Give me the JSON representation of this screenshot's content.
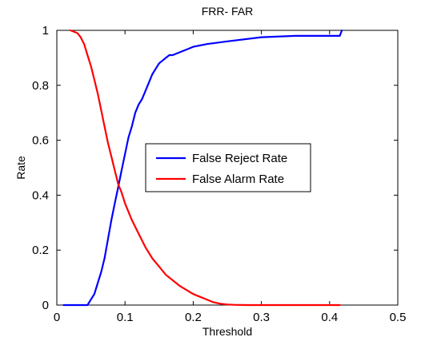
{
  "chart_data": {
    "type": "line",
    "title": "FRR- FAR",
    "xlabel": "Threshold",
    "ylabel": "Rate",
    "xlim": [
      0,
      0.5
    ],
    "ylim": [
      0,
      1
    ],
    "xticks": [
      0,
      0.1,
      0.2,
      0.3,
      0.4,
      0.5
    ],
    "yticks": [
      0,
      0.2,
      0.4,
      0.6,
      0.8,
      1
    ],
    "xtick_labels": [
      "0",
      "0.1",
      "0.2",
      "0.3",
      "0.4",
      "0.5"
    ],
    "ytick_labels": [
      "0",
      "0.2",
      "0.4",
      "0.6",
      "0.8",
      "1"
    ],
    "grid": false,
    "legend_position": "center",
    "series": [
      {
        "name": "False Reject Rate",
        "color": "#0000ff",
        "x": [
          0.01,
          0.045,
          0.05,
          0.055,
          0.06,
          0.065,
          0.07,
          0.075,
          0.08,
          0.085,
          0.09,
          0.095,
          0.1,
          0.105,
          0.11,
          0.115,
          0.12,
          0.125,
          0.13,
          0.135,
          0.14,
          0.145,
          0.15,
          0.155,
          0.16,
          0.165,
          0.17,
          0.18,
          0.19,
          0.2,
          0.22,
          0.25,
          0.3,
          0.35,
          0.4,
          0.415,
          0.418
        ],
        "y": [
          0,
          0,
          0.02,
          0.04,
          0.08,
          0.12,
          0.17,
          0.24,
          0.31,
          0.37,
          0.43,
          0.49,
          0.55,
          0.61,
          0.65,
          0.7,
          0.73,
          0.75,
          0.78,
          0.81,
          0.84,
          0.86,
          0.88,
          0.89,
          0.9,
          0.91,
          0.91,
          0.92,
          0.93,
          0.94,
          0.95,
          0.96,
          0.975,
          0.98,
          0.98,
          0.98,
          1.0
        ]
      },
      {
        "name": "False Alarm Rate",
        "color": "#ff0000",
        "x": [
          0.02,
          0.03,
          0.035,
          0.04,
          0.045,
          0.05,
          0.055,
          0.06,
          0.065,
          0.07,
          0.075,
          0.08,
          0.085,
          0.09,
          0.095,
          0.1,
          0.11,
          0.12,
          0.13,
          0.14,
          0.15,
          0.16,
          0.17,
          0.18,
          0.19,
          0.2,
          0.21,
          0.22,
          0.23,
          0.24,
          0.25,
          0.26,
          0.28,
          0.3,
          0.35,
          0.4,
          0.415
        ],
        "y": [
          1.0,
          0.99,
          0.975,
          0.95,
          0.91,
          0.87,
          0.82,
          0.77,
          0.71,
          0.65,
          0.59,
          0.54,
          0.49,
          0.44,
          0.41,
          0.37,
          0.31,
          0.26,
          0.21,
          0.17,
          0.14,
          0.11,
          0.09,
          0.07,
          0.055,
          0.04,
          0.03,
          0.02,
          0.01,
          0.005,
          0.002,
          0.001,
          0,
          0,
          0,
          0,
          0
        ]
      }
    ]
  }
}
